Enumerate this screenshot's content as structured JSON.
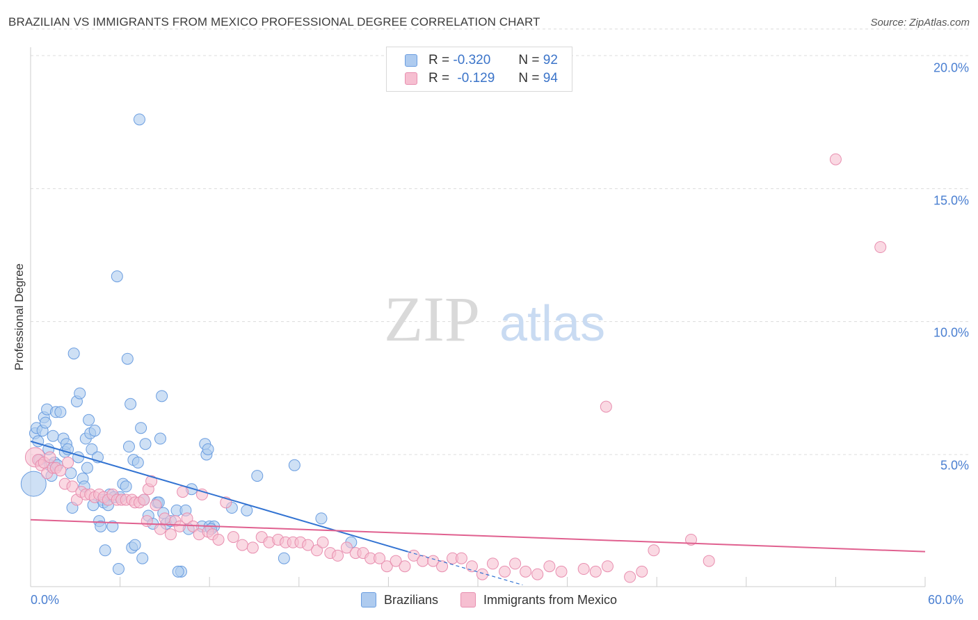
{
  "header": {
    "title": "BRAZILIAN VS IMMIGRANTS FROM MEXICO PROFESSIONAL DEGREE CORRELATION CHART",
    "source": "Source: ZipAtlas.com"
  },
  "watermark": {
    "part1": "ZIP",
    "part2": "atlas"
  },
  "legend": {
    "rows": [
      {
        "r_label": "R =",
        "r_value": "-0.320",
        "n_label": "N =",
        "n_value": "92"
      },
      {
        "r_label": "R =",
        "r_value": "-0.129",
        "n_label": "N =",
        "n_value": "94"
      }
    ]
  },
  "colors": {
    "blue_fill": "#aecbef",
    "blue_stroke": "#6a9de0",
    "blue_line": "#3273d2",
    "pink_fill": "#f6bfd1",
    "pink_stroke": "#e88eaf",
    "pink_line": "#e0608f",
    "tick_text": "#4a7fd1",
    "grid": "#dcdcdc"
  },
  "chart_data": {
    "type": "scatter",
    "title": "BRAZILIAN VS IMMIGRANTS FROM MEXICO PROFESSIONAL DEGREE CORRELATION CHART",
    "xlabel": "",
    "ylabel": "Professional Degree",
    "xlim": [
      0,
      60
    ],
    "ylim": [
      0,
      21
    ],
    "x_tick_labels": [
      "0.0%",
      "60.0%"
    ],
    "y_tick_labels": [
      "20.0%",
      "15.0%",
      "10.0%",
      "5.0%"
    ],
    "y_ticks": [
      20,
      15,
      10,
      5
    ],
    "legend_position": "bottom-center",
    "series": [
      {
        "name": "Brazilians",
        "R": -0.32,
        "N": 92,
        "trend": {
          "x": [
            0,
            25.3
          ],
          "y": [
            5.5,
            1.35
          ]
        },
        "trend_dashed": {
          "x": [
            25.3,
            33
          ],
          "y": [
            1.35,
            0.1
          ]
        },
        "points": [
          [
            0.2,
            3.9
          ],
          [
            0.3,
            5.8
          ],
          [
            0.4,
            6.0
          ],
          [
            0.5,
            5.5
          ],
          [
            0.6,
            4.8
          ],
          [
            0.8,
            5.9
          ],
          [
            0.9,
            6.4
          ],
          [
            1.0,
            6.2
          ],
          [
            1.1,
            6.7
          ],
          [
            1.2,
            5.2
          ],
          [
            1.3,
            4.6
          ],
          [
            1.4,
            4.2
          ],
          [
            1.5,
            5.7
          ],
          [
            1.6,
            4.7
          ],
          [
            1.7,
            6.6
          ],
          [
            1.8,
            4.6
          ],
          [
            2.0,
            6.6
          ],
          [
            2.2,
            5.6
          ],
          [
            2.3,
            5.1
          ],
          [
            2.4,
            5.4
          ],
          [
            2.5,
            5.2
          ],
          [
            2.7,
            4.3
          ],
          [
            2.8,
            3.0
          ],
          [
            2.9,
            8.8
          ],
          [
            3.1,
            7.0
          ],
          [
            3.2,
            4.9
          ],
          [
            3.3,
            7.3
          ],
          [
            3.5,
            4.1
          ],
          [
            3.6,
            3.8
          ],
          [
            3.7,
            5.6
          ],
          [
            3.8,
            4.5
          ],
          [
            3.9,
            6.3
          ],
          [
            4.0,
            5.8
          ],
          [
            4.1,
            5.2
          ],
          [
            4.2,
            3.1
          ],
          [
            4.3,
            5.9
          ],
          [
            4.5,
            4.9
          ],
          [
            4.6,
            2.5
          ],
          [
            4.8,
            3.3
          ],
          [
            4.9,
            3.2
          ],
          [
            5.0,
            1.4
          ],
          [
            5.2,
            3.1
          ],
          [
            5.3,
            3.5
          ],
          [
            5.5,
            2.3
          ],
          [
            5.6,
            3.4
          ],
          [
            5.8,
            11.7
          ],
          [
            5.9,
            0.7
          ],
          [
            6.0,
            3.4
          ],
          [
            6.2,
            3.9
          ],
          [
            6.4,
            3.8
          ],
          [
            6.5,
            8.6
          ],
          [
            6.6,
            5.3
          ],
          [
            6.7,
            6.9
          ],
          [
            6.8,
            1.5
          ],
          [
            6.9,
            4.8
          ],
          [
            7.0,
            1.6
          ],
          [
            7.2,
            4.7
          ],
          [
            7.3,
            17.6
          ],
          [
            7.4,
            6.0
          ],
          [
            7.5,
            1.1
          ],
          [
            7.6,
            3.3
          ],
          [
            7.7,
            5.4
          ],
          [
            7.9,
            2.7
          ],
          [
            8.2,
            2.4
          ],
          [
            8.5,
            3.2
          ],
          [
            8.6,
            3.2
          ],
          [
            8.7,
            5.6
          ],
          [
            8.8,
            7.2
          ],
          [
            8.9,
            2.8
          ],
          [
            9.1,
            2.4
          ],
          [
            9.4,
            2.5
          ],
          [
            9.8,
            2.9
          ],
          [
            10.1,
            0.6
          ],
          [
            10.4,
            2.9
          ],
          [
            10.6,
            2.2
          ],
          [
            10.8,
            3.7
          ],
          [
            11.5,
            2.3
          ],
          [
            11.7,
            5.4
          ],
          [
            11.8,
            5.0
          ],
          [
            11.9,
            5.2
          ],
          [
            12.0,
            2.3
          ],
          [
            12.3,
            2.3
          ],
          [
            13.5,
            3.0
          ],
          [
            14.5,
            2.9
          ],
          [
            15.2,
            4.2
          ],
          [
            17.0,
            1.1
          ],
          [
            17.7,
            4.6
          ],
          [
            19.5,
            2.6
          ],
          [
            21.5,
            1.7
          ],
          [
            9.9,
            0.6
          ],
          [
            12.1,
            2.2
          ],
          [
            4.7,
            2.3
          ]
        ]
      },
      {
        "name": "Immigrants from Mexico",
        "R": -0.129,
        "N": 94,
        "trend": {
          "x": [
            0,
            60
          ],
          "y": [
            2.55,
            1.35
          ]
        },
        "points": [
          [
            0.3,
            4.9
          ],
          [
            0.5,
            4.8
          ],
          [
            0.7,
            4.6
          ],
          [
            0.9,
            4.7
          ],
          [
            1.1,
            4.3
          ],
          [
            1.3,
            4.9
          ],
          [
            1.5,
            4.5
          ],
          [
            1.7,
            4.5
          ],
          [
            2.0,
            4.4
          ],
          [
            2.3,
            3.9
          ],
          [
            2.5,
            4.7
          ],
          [
            2.8,
            3.8
          ],
          [
            3.1,
            3.3
          ],
          [
            3.4,
            3.6
          ],
          [
            3.7,
            3.5
          ],
          [
            4.0,
            3.5
          ],
          [
            4.3,
            3.4
          ],
          [
            4.6,
            3.5
          ],
          [
            4.9,
            3.4
          ],
          [
            5.2,
            3.3
          ],
          [
            5.5,
            3.5
          ],
          [
            5.8,
            3.3
          ],
          [
            6.1,
            3.3
          ],
          [
            6.4,
            3.3
          ],
          [
            6.8,
            3.3
          ],
          [
            7.0,
            3.2
          ],
          [
            7.3,
            3.2
          ],
          [
            7.6,
            3.3
          ],
          [
            7.8,
            2.5
          ],
          [
            7.9,
            3.7
          ],
          [
            8.1,
            4.0
          ],
          [
            8.4,
            3.1
          ],
          [
            8.7,
            2.2
          ],
          [
            9.0,
            2.6
          ],
          [
            9.4,
            2.0
          ],
          [
            9.7,
            2.5
          ],
          [
            10.0,
            2.3
          ],
          [
            10.2,
            3.6
          ],
          [
            10.5,
            2.6
          ],
          [
            10.9,
            2.3
          ],
          [
            11.3,
            2.0
          ],
          [
            11.5,
            3.5
          ],
          [
            11.9,
            2.1
          ],
          [
            12.2,
            2.0
          ],
          [
            12.6,
            1.8
          ],
          [
            13.1,
            3.2
          ],
          [
            13.6,
            1.9
          ],
          [
            14.2,
            1.6
          ],
          [
            14.9,
            1.5
          ],
          [
            15.5,
            1.9
          ],
          [
            16.0,
            1.7
          ],
          [
            16.6,
            1.8
          ],
          [
            17.1,
            1.7
          ],
          [
            17.6,
            1.7
          ],
          [
            18.1,
            1.7
          ],
          [
            18.6,
            1.6
          ],
          [
            19.2,
            1.4
          ],
          [
            19.6,
            1.7
          ],
          [
            20.1,
            1.3
          ],
          [
            20.6,
            1.2
          ],
          [
            21.2,
            1.5
          ],
          [
            21.8,
            1.3
          ],
          [
            22.3,
            1.3
          ],
          [
            22.8,
            1.1
          ],
          [
            23.4,
            1.1
          ],
          [
            23.9,
            0.8
          ],
          [
            24.5,
            1.0
          ],
          [
            25.1,
            0.8
          ],
          [
            25.7,
            1.2
          ],
          [
            26.3,
            1.0
          ],
          [
            27.0,
            1.0
          ],
          [
            27.6,
            0.8
          ],
          [
            28.3,
            1.1
          ],
          [
            28.9,
            1.1
          ],
          [
            29.6,
            0.8
          ],
          [
            30.3,
            0.5
          ],
          [
            31.0,
            0.9
          ],
          [
            31.8,
            0.6
          ],
          [
            32.5,
            0.9
          ],
          [
            33.2,
            0.6
          ],
          [
            34.0,
            0.5
          ],
          [
            34.8,
            0.8
          ],
          [
            35.6,
            0.6
          ],
          [
            37.1,
            0.7
          ],
          [
            37.9,
            0.6
          ],
          [
            38.6,
            6.8
          ],
          [
            38.7,
            0.8
          ],
          [
            40.2,
            0.4
          ],
          [
            41.0,
            0.6
          ],
          [
            41.8,
            1.4
          ],
          [
            44.3,
            1.8
          ],
          [
            45.5,
            1.0
          ],
          [
            54.0,
            16.1
          ],
          [
            57.0,
            12.8
          ]
        ]
      }
    ]
  },
  "bottom_legend": {
    "items": [
      {
        "label": "Brazilians"
      },
      {
        "label": "Immigrants from Mexico"
      }
    ]
  }
}
